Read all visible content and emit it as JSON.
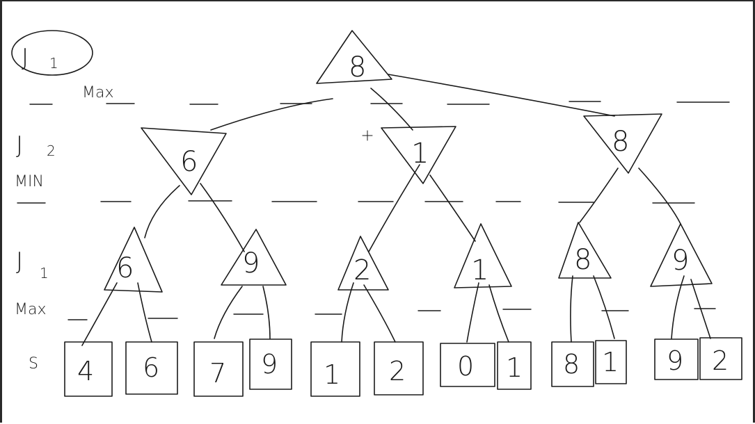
{
  "labels": {
    "root_player": "J",
    "root_player_sub": "1",
    "root_role": "Max",
    "level1_player": "J",
    "level1_player_sub": "2",
    "level1_role": "MIN",
    "level2_player": "J",
    "level2_player_sub": "1",
    "level2_role": "Max",
    "leaves_label": "S"
  },
  "tree": {
    "root": "8",
    "min_nodes": [
      "6",
      "1",
      "8"
    ],
    "max_nodes": [
      "6",
      "9",
      "2",
      "1",
      "8",
      "9"
    ],
    "leaves": [
      "4",
      "6",
      "7",
      "9",
      "1",
      "2",
      "0",
      "1",
      "8",
      "1",
      "9",
      "2"
    ]
  },
  "colors": {
    "ink": "#1a1a1a",
    "frame": "#2a2a2a",
    "background": "#ffffff"
  }
}
